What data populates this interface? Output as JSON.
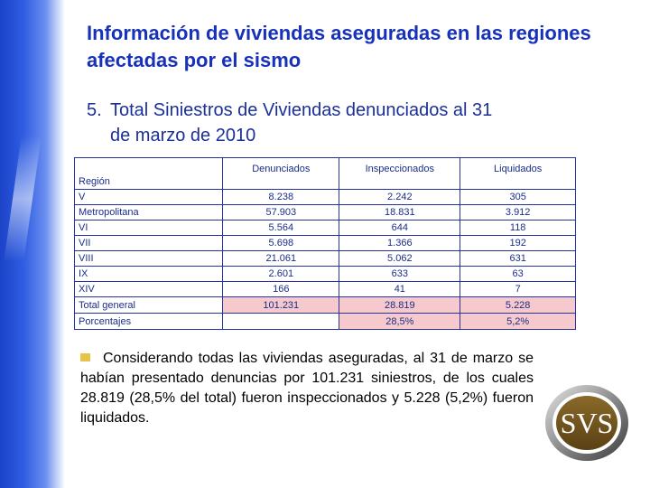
{
  "title": "Información de viviendas aseguradas en las regiones afectadas por el sismo",
  "subtitle": {
    "number": "5.",
    "line1": "Total Siniestros de Viviendas denunciados al 31",
    "line2": "de marzo de 2010"
  },
  "table": {
    "headers": [
      "Región",
      "Denunciados",
      "Inspeccionados",
      "Liquidados"
    ],
    "rows": [
      [
        "V",
        "8.238",
        "2.242",
        "305"
      ],
      [
        "Metropolitana",
        "57.903",
        "18.831",
        "3.912"
      ],
      [
        "VI",
        "5.564",
        "644",
        "118"
      ],
      [
        "VII",
        "5.698",
        "1.366",
        "192"
      ],
      [
        "VIII",
        "21.061",
        "5.062",
        "631"
      ],
      [
        "IX",
        "2.601",
        "633",
        "63"
      ],
      [
        "XIV",
        "166",
        "41",
        "7"
      ]
    ],
    "total": [
      "Total general",
      "101.231",
      "28.819",
      "5.228"
    ],
    "percent": [
      "Porcentajes",
      "",
      "28,5%",
      "5,2%"
    ],
    "highlight_color": "#f6c9cd"
  },
  "paragraph": "Considerando todas las viviendas aseguradas, al 31 de marzo se habían presentado denuncias por 101.231 siniestros, de los cuales 28.819 (28,5% del total) fueron inspeccionados y 5.228 (5,2%) fueron liquidados.",
  "logo": {
    "text": "SVS",
    "icon": "svs-logo"
  },
  "colors": {
    "title": "#1732b8",
    "band": "#1b43c8",
    "bullet": "#e8c34a"
  }
}
